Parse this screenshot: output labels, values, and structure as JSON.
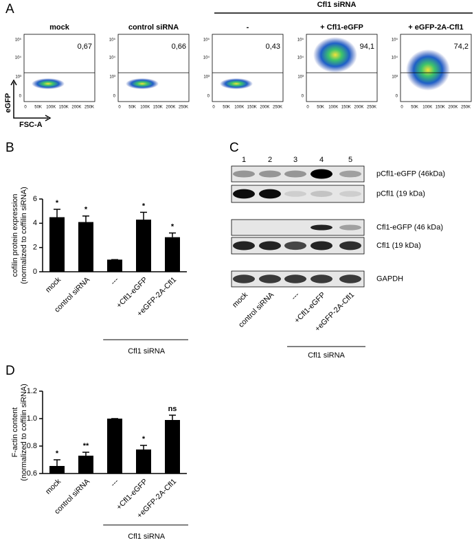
{
  "panel_labels": [
    "A",
    "B",
    "C",
    "D"
  ],
  "flow": {
    "group_label": "Cfl1 siRNA",
    "y_label": "eGFP",
    "x_label": "FSC-A",
    "xticks": [
      "0",
      "50K",
      "100K",
      "150K",
      "200K",
      "250K"
    ],
    "yticks": [
      "10⁵",
      "10⁴",
      "10³",
      "0"
    ],
    "plots": [
      {
        "title": "mock",
        "value_label": "0,67"
      },
      {
        "title": "control siRNA",
        "value_label": "0,66"
      },
      {
        "title": "-",
        "value_label": "0,43"
      },
      {
        "title": "+ Cfl1-eGFP",
        "value_label": "94,1"
      },
      {
        "title": "+ eGFP-2A-Cfl1",
        "value_label": "74,2"
      }
    ]
  },
  "blot": {
    "lanes": [
      "1",
      "2",
      "3",
      "4",
      "5"
    ],
    "bands": [
      "pCfl1-eGFP (46kDa)",
      "pCfl1 (19 kDa)",
      "Cfl1-eGFP (46 kDa)",
      "Cfl1 (19 kDa)",
      "GAPDH"
    ],
    "categories": [
      "mock",
      "control siRNA",
      "---",
      "+Cfl1-eGFP",
      "+eGFP-2A-Cfl1"
    ],
    "group_label": "Cfl1 siRNA"
  },
  "chart_data": [
    {
      "type": "bar",
      "y_label": [
        "cofilin protein expression",
        "(normalized to coffilin siRNA)"
      ],
      "categories": [
        "mock",
        "control siRNA",
        "---",
        "+Cfl1-eGFP",
        "+eGFP-2A-Cfl1"
      ],
      "values": [
        4.5,
        4.1,
        1.0,
        4.3,
        2.85
      ],
      "errors": [
        0.65,
        0.5,
        0,
        0.6,
        0.35
      ],
      "significance": [
        "*",
        "*",
        null,
        "*",
        "*"
      ],
      "group_label": "Cfl1 siRNA",
      "color": "#000000",
      "ylim": [
        0,
        6
      ],
      "yticks": [
        0,
        2,
        4,
        6
      ]
    },
    {
      "type": "bar",
      "y_label": [
        "F-actin content",
        "(normalized to coffilin siRNA)"
      ],
      "categories": [
        "mock",
        "control siRNA",
        "---",
        "+Cfl1-eGFP",
        "+eGFP-2A-Cfl1"
      ],
      "values": [
        0.655,
        0.73,
        1.0,
        0.775,
        0.99
      ],
      "errors": [
        0.045,
        0.025,
        0,
        0.03,
        0.035
      ],
      "significance": [
        "*",
        "**",
        null,
        "*",
        "ns"
      ],
      "group_label": "Cfl1 siRNA",
      "color": "#000000",
      "ylim": [
        0.6,
        1.2
      ],
      "yticks": [
        0.6,
        0.8,
        {
          "value": 1.0,
          "label": "1.0"
        },
        1.2
      ]
    }
  ]
}
